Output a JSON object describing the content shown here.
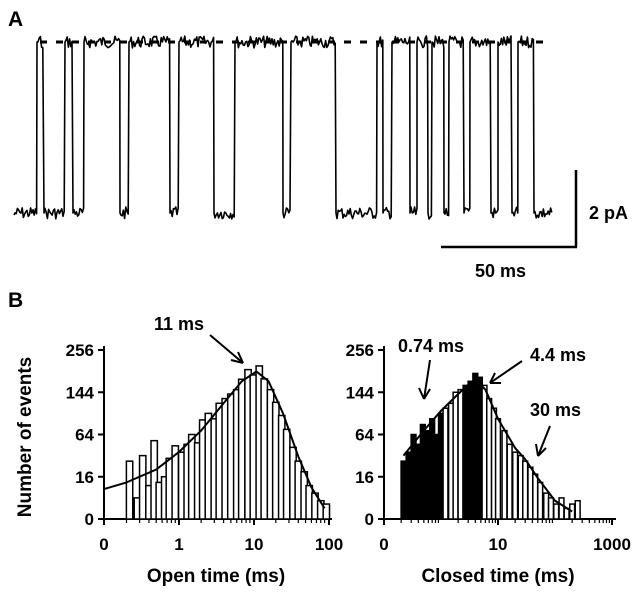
{
  "panel_a": {
    "label": "A",
    "scale_bar_current": "2 pA",
    "scale_bar_time": "50 ms"
  },
  "panel_b": {
    "label": "B",
    "ylabel": "Number of events"
  },
  "chart_data": [
    {
      "type": "bar",
      "xlabel": "Open time (ms)",
      "ylabel": "Number of events",
      "x_ticks": [
        "0",
        "1",
        "10",
        "100"
      ],
      "y_ticks": [
        "0",
        "16",
        "64",
        "144",
        "256"
      ],
      "x_scale": "log",
      "y_scale": "square-root",
      "annotations": [
        {
          "text": "11 ms",
          "x": 11
        }
      ],
      "bins": [
        {
          "x": 0.22,
          "y": 30
        },
        {
          "x": 0.28,
          "y": 4
        },
        {
          "x": 0.33,
          "y": 36
        },
        {
          "x": 0.4,
          "y": 10
        },
        {
          "x": 0.47,
          "y": 55
        },
        {
          "x": 0.55,
          "y": 12
        },
        {
          "x": 0.65,
          "y": 16
        },
        {
          "x": 0.75,
          "y": 33
        },
        {
          "x": 0.9,
          "y": 48
        },
        {
          "x": 1.1,
          "y": 40
        },
        {
          "x": 1.3,
          "y": 50
        },
        {
          "x": 1.5,
          "y": 64
        },
        {
          "x": 1.8,
          "y": 52
        },
        {
          "x": 2.1,
          "y": 88
        },
        {
          "x": 2.5,
          "y": 100
        },
        {
          "x": 3.0,
          "y": 90
        },
        {
          "x": 3.5,
          "y": 120
        },
        {
          "x": 4.2,
          "y": 130
        },
        {
          "x": 5.0,
          "y": 140
        },
        {
          "x": 6.0,
          "y": 150
        },
        {
          "x": 7.0,
          "y": 175
        },
        {
          "x": 8.5,
          "y": 200
        },
        {
          "x": 10,
          "y": 186
        },
        {
          "x": 12,
          "y": 210
        },
        {
          "x": 14,
          "y": 176
        },
        {
          "x": 17,
          "y": 150
        },
        {
          "x": 20,
          "y": 122
        },
        {
          "x": 24,
          "y": 96
        },
        {
          "x": 28,
          "y": 72
        },
        {
          "x": 34,
          "y": 46
        },
        {
          "x": 40,
          "y": 30
        },
        {
          "x": 48,
          "y": 20
        },
        {
          "x": 56,
          "y": 10
        },
        {
          "x": 67,
          "y": 6
        },
        {
          "x": 80,
          "y": 3
        },
        {
          "x": 95,
          "y": 2
        }
      ],
      "fit_line": [
        {
          "x": 0,
          "y": 8
        },
        {
          "x": 0.2,
          "y": 12
        },
        {
          "x": 0.5,
          "y": 22
        },
        {
          "x": 1,
          "y": 40
        },
        {
          "x": 2,
          "y": 70
        },
        {
          "x": 4,
          "y": 120
        },
        {
          "x": 7,
          "y": 170
        },
        {
          "x": 11,
          "y": 195
        },
        {
          "x": 16,
          "y": 170
        },
        {
          "x": 25,
          "y": 100
        },
        {
          "x": 40,
          "y": 35
        },
        {
          "x": 60,
          "y": 9
        },
        {
          "x": 90,
          "y": 1
        }
      ]
    },
    {
      "type": "bar",
      "xlabel": "Closed time (ms)",
      "ylabel": "Number of events",
      "x_ticks": [
        "0",
        "10",
        "1000"
      ],
      "y_ticks": [
        "0",
        "16",
        "64",
        "144",
        "256"
      ],
      "x_scale": "log",
      "y_scale": "square-root",
      "annotations": [
        {
          "text": "0.74 ms",
          "x": 0.74
        },
        {
          "text": "4.4 ms",
          "x": 4.4
        },
        {
          "text": "30 ms",
          "x": 30
        }
      ],
      "bins": [
        {
          "x": 0.22,
          "y": 30
        },
        {
          "x": 0.27,
          "y": 40
        },
        {
          "x": 0.33,
          "y": 64
        },
        {
          "x": 0.4,
          "y": 50
        },
        {
          "x": 0.48,
          "y": 80
        },
        {
          "x": 0.58,
          "y": 70
        },
        {
          "x": 0.7,
          "y": 90
        },
        {
          "x": 0.84,
          "y": 64
        },
        {
          "x": 1.0,
          "y": 100
        },
        {
          "x": 1.2,
          "y": 110
        },
        {
          "x": 1.5,
          "y": 120
        },
        {
          "x": 1.8,
          "y": 144
        },
        {
          "x": 2.2,
          "y": 150
        },
        {
          "x": 2.7,
          "y": 160
        },
        {
          "x": 3.3,
          "y": 170
        },
        {
          "x": 4.0,
          "y": 190
        },
        {
          "x": 4.8,
          "y": 180
        },
        {
          "x": 5.8,
          "y": 160
        },
        {
          "x": 7.0,
          "y": 130
        },
        {
          "x": 8.5,
          "y": 110
        },
        {
          "x": 10,
          "y": 90
        },
        {
          "x": 13,
          "y": 70
        },
        {
          "x": 16,
          "y": 50
        },
        {
          "x": 20,
          "y": 40
        },
        {
          "x": 25,
          "y": 36
        },
        {
          "x": 30,
          "y": 30
        },
        {
          "x": 37,
          "y": 24
        },
        {
          "x": 45,
          "y": 18
        },
        {
          "x": 55,
          "y": 12
        },
        {
          "x": 70,
          "y": 6
        },
        {
          "x": 85,
          "y": 4
        },
        {
          "x": 105,
          "y": 2
        },
        {
          "x": 130,
          "y": 4
        },
        {
          "x": 160,
          "y": 1
        },
        {
          "x": 200,
          "y": 2
        },
        {
          "x": 250,
          "y": 3
        }
      ],
      "fit_line": [
        {
          "x": 0.22,
          "y": 36
        },
        {
          "x": 0.5,
          "y": 70
        },
        {
          "x": 1,
          "y": 105
        },
        {
          "x": 2,
          "y": 140
        },
        {
          "x": 3,
          "y": 162
        },
        {
          "x": 4.4,
          "y": 168
        },
        {
          "x": 6,
          "y": 150
        },
        {
          "x": 10,
          "y": 90
        },
        {
          "x": 20,
          "y": 45
        },
        {
          "x": 30,
          "y": 32
        },
        {
          "x": 50,
          "y": 15
        },
        {
          "x": 100,
          "y": 3
        },
        {
          "x": 200,
          "y": 0.5
        }
      ]
    }
  ]
}
